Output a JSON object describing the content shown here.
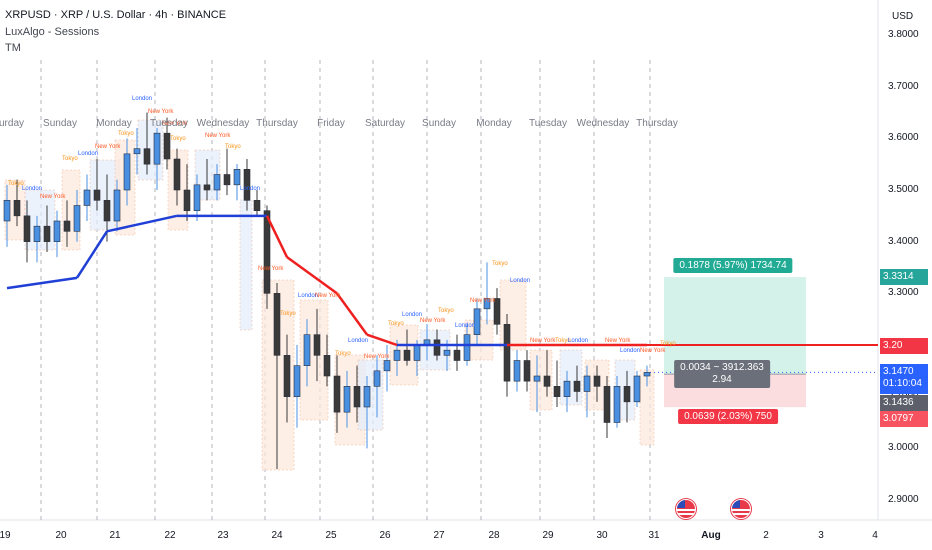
{
  "header": {
    "title": "XRPUSD · XRP / U.S. Dollar · 4h · BINANCE",
    "indicator_1": "LuxAlgo - Sessions",
    "indicator_2": "TM"
  },
  "price_axis": {
    "currency": "USD",
    "ticks": [
      "3.8000",
      "3.7000",
      "3.6000",
      "3.5000",
      "3.4000",
      "3.3000",
      "3.2000",
      "3.1000",
      "3.0000",
      "2.9000"
    ],
    "badges": {
      "target": "3.3314",
      "level": "3.20",
      "current": "3.1470",
      "countdown": "01:10:04",
      "entry": "3.1436",
      "stop": "3.0797"
    }
  },
  "time_axis": {
    "ticks": [
      "19",
      "20",
      "21",
      "22",
      "23",
      "24",
      "25",
      "26",
      "27",
      "28",
      "29",
      "30",
      "31",
      "Aug",
      "2",
      "3",
      "4"
    ]
  },
  "day_labels": [
    "Saturday",
    "Sunday",
    "Monday",
    "Tuesday",
    "Wednesday",
    "Thursday",
    "Friday",
    "Saturday",
    "Sunday",
    "Monday",
    "Tuesday",
    "Wednesday",
    "Thursday"
  ],
  "session_names": {
    "tokyo": "Tokyo",
    "london": "London",
    "newyork": "New York"
  },
  "position": {
    "target_label": "0.1878 (5.97%) 1734.74",
    "mid_label_1": "0.0034 ~ 3912.363",
    "mid_label_2": "2.94",
    "stop_label": "0.0639 (2.03%) 750"
  },
  "colors": {
    "up": "#4a90e2",
    "down": "#3a3a3a",
    "trend_up": "#1f3fd6",
    "trend_down": "#ee2020",
    "target_zone": "#d4f1ea",
    "stop_zone": "#fbdde0",
    "accent_green": "#26a69a",
    "accent_red": "#f23645"
  },
  "chart_data": {
    "type": "candlestick",
    "symbol": "XRPUSD",
    "interval": "4h",
    "ylim": [
      2.84,
      3.85
    ],
    "candles": [
      {
        "o": 3.44,
        "h": 3.51,
        "l": 3.39,
        "c": 3.48
      },
      {
        "o": 3.48,
        "h": 3.52,
        "l": 3.43,
        "c": 3.45
      },
      {
        "o": 3.45,
        "h": 3.48,
        "l": 3.36,
        "c": 3.4
      },
      {
        "o": 3.4,
        "h": 3.45,
        "l": 3.36,
        "c": 3.43
      },
      {
        "o": 3.43,
        "h": 3.47,
        "l": 3.38,
        "c": 3.4
      },
      {
        "o": 3.4,
        "h": 3.46,
        "l": 3.37,
        "c": 3.44
      },
      {
        "o": 3.44,
        "h": 3.48,
        "l": 3.39,
        "c": 3.42
      },
      {
        "o": 3.42,
        "h": 3.5,
        "l": 3.4,
        "c": 3.47
      },
      {
        "o": 3.47,
        "h": 3.53,
        "l": 3.44,
        "c": 3.5
      },
      {
        "o": 3.5,
        "h": 3.56,
        "l": 3.46,
        "c": 3.48
      },
      {
        "o": 3.48,
        "h": 3.53,
        "l": 3.4,
        "c": 3.44
      },
      {
        "o": 3.44,
        "h": 3.52,
        "l": 3.42,
        "c": 3.5
      },
      {
        "o": 3.5,
        "h": 3.6,
        "l": 3.47,
        "c": 3.57
      },
      {
        "o": 3.57,
        "h": 3.62,
        "l": 3.53,
        "c": 3.58
      },
      {
        "o": 3.58,
        "h": 3.65,
        "l": 3.53,
        "c": 3.55
      },
      {
        "o": 3.55,
        "h": 3.62,
        "l": 3.5,
        "c": 3.61
      },
      {
        "o": 3.61,
        "h": 3.64,
        "l": 3.54,
        "c": 3.56
      },
      {
        "o": 3.56,
        "h": 3.58,
        "l": 3.47,
        "c": 3.5
      },
      {
        "o": 3.5,
        "h": 3.55,
        "l": 3.44,
        "c": 3.46
      },
      {
        "o": 3.46,
        "h": 3.53,
        "l": 3.44,
        "c": 3.51
      },
      {
        "o": 3.51,
        "h": 3.56,
        "l": 3.48,
        "c": 3.5
      },
      {
        "o": 3.5,
        "h": 3.55,
        "l": 3.48,
        "c": 3.53
      },
      {
        "o": 3.53,
        "h": 3.58,
        "l": 3.49,
        "c": 3.51
      },
      {
        "o": 3.51,
        "h": 3.55,
        "l": 3.48,
        "c": 3.54
      },
      {
        "o": 3.54,
        "h": 3.56,
        "l": 3.46,
        "c": 3.48
      },
      {
        "o": 3.48,
        "h": 3.5,
        "l": 3.45,
        "c": 3.46
      },
      {
        "o": 3.46,
        "h": 3.47,
        "l": 3.27,
        "c": 3.3
      },
      {
        "o": 3.3,
        "h": 3.32,
        "l": 2.96,
        "c": 3.18
      },
      {
        "o": 3.18,
        "h": 3.22,
        "l": 3.05,
        "c": 3.1
      },
      {
        "o": 3.1,
        "h": 3.2,
        "l": 3.04,
        "c": 3.16
      },
      {
        "o": 3.16,
        "h": 3.25,
        "l": 3.12,
        "c": 3.22
      },
      {
        "o": 3.22,
        "h": 3.27,
        "l": 3.13,
        "c": 3.18
      },
      {
        "o": 3.18,
        "h": 3.22,
        "l": 3.12,
        "c": 3.14
      },
      {
        "o": 3.14,
        "h": 3.18,
        "l": 3.03,
        "c": 3.07
      },
      {
        "o": 3.07,
        "h": 3.15,
        "l": 3.04,
        "c": 3.12
      },
      {
        "o": 3.12,
        "h": 3.16,
        "l": 3.05,
        "c": 3.08
      },
      {
        "o": 3.08,
        "h": 3.14,
        "l": 3.0,
        "c": 3.12
      },
      {
        "o": 3.12,
        "h": 3.18,
        "l": 3.06,
        "c": 3.15
      },
      {
        "o": 3.15,
        "h": 3.2,
        "l": 3.11,
        "c": 3.17
      },
      {
        "o": 3.17,
        "h": 3.21,
        "l": 3.14,
        "c": 3.19
      },
      {
        "o": 3.19,
        "h": 3.23,
        "l": 3.16,
        "c": 3.17
      },
      {
        "o": 3.17,
        "h": 3.21,
        "l": 3.14,
        "c": 3.2
      },
      {
        "o": 3.2,
        "h": 3.24,
        "l": 3.17,
        "c": 3.21
      },
      {
        "o": 3.21,
        "h": 3.23,
        "l": 3.17,
        "c": 3.18
      },
      {
        "o": 3.18,
        "h": 3.21,
        "l": 3.15,
        "c": 3.19
      },
      {
        "o": 3.19,
        "h": 3.22,
        "l": 3.15,
        "c": 3.17
      },
      {
        "o": 3.17,
        "h": 3.24,
        "l": 3.16,
        "c": 3.22
      },
      {
        "o": 3.22,
        "h": 3.29,
        "l": 3.2,
        "c": 3.27
      },
      {
        "o": 3.27,
        "h": 3.36,
        "l": 3.24,
        "c": 3.29
      },
      {
        "o": 3.29,
        "h": 3.31,
        "l": 3.22,
        "c": 3.24
      },
      {
        "o": 3.24,
        "h": 3.26,
        "l": 3.1,
        "c": 3.13
      },
      {
        "o": 3.13,
        "h": 3.19,
        "l": 3.11,
        "c": 3.17
      },
      {
        "o": 3.17,
        "h": 3.19,
        "l": 3.11,
        "c": 3.13
      },
      {
        "o": 3.13,
        "h": 3.18,
        "l": 3.07,
        "c": 3.14
      },
      {
        "o": 3.14,
        "h": 3.19,
        "l": 3.1,
        "c": 3.12
      },
      {
        "o": 3.12,
        "h": 3.17,
        "l": 3.08,
        "c": 3.1
      },
      {
        "o": 3.1,
        "h": 3.15,
        "l": 3.07,
        "c": 3.13
      },
      {
        "o": 3.13,
        "h": 3.16,
        "l": 3.09,
        "c": 3.11
      },
      {
        "o": 3.11,
        "h": 3.16,
        "l": 3.06,
        "c": 3.14
      },
      {
        "o": 3.14,
        "h": 3.16,
        "l": 3.09,
        "c": 3.12
      },
      {
        "o": 3.12,
        "h": 3.14,
        "l": 3.02,
        "c": 3.05
      },
      {
        "o": 3.05,
        "h": 3.14,
        "l": 3.04,
        "c": 3.12
      },
      {
        "o": 3.12,
        "h": 3.15,
        "l": 3.05,
        "c": 3.09
      },
      {
        "o": 3.09,
        "h": 3.15,
        "l": 3.08,
        "c": 3.14
      },
      {
        "o": 3.14,
        "h": 3.16,
        "l": 3.12,
        "c": 3.147
      }
    ],
    "trend_line": [
      {
        "i": 0,
        "v": 3.31,
        "dir": "up"
      },
      {
        "i": 7,
        "v": 3.33,
        "dir": "up"
      },
      {
        "i": 10,
        "v": 3.42,
        "dir": "up"
      },
      {
        "i": 17,
        "v": 3.45,
        "dir": "up"
      },
      {
        "i": 26,
        "v": 3.45,
        "dir": "down"
      },
      {
        "i": 28,
        "v": 3.37,
        "dir": "down"
      },
      {
        "i": 33,
        "v": 3.3,
        "dir": "down"
      },
      {
        "i": 36,
        "v": 3.22,
        "dir": "down"
      },
      {
        "i": 39,
        "v": 3.2,
        "dir": "up"
      },
      {
        "i": 50,
        "v": 3.2,
        "dir": "up"
      },
      {
        "i": 50,
        "v": 3.2,
        "dir": "down"
      },
      {
        "i": 64,
        "v": 3.2,
        "dir": "down"
      }
    ],
    "position": {
      "target": 3.3314,
      "entry": 3.1436,
      "stop": 3.0797
    },
    "horizontal_level": 3.2
  }
}
